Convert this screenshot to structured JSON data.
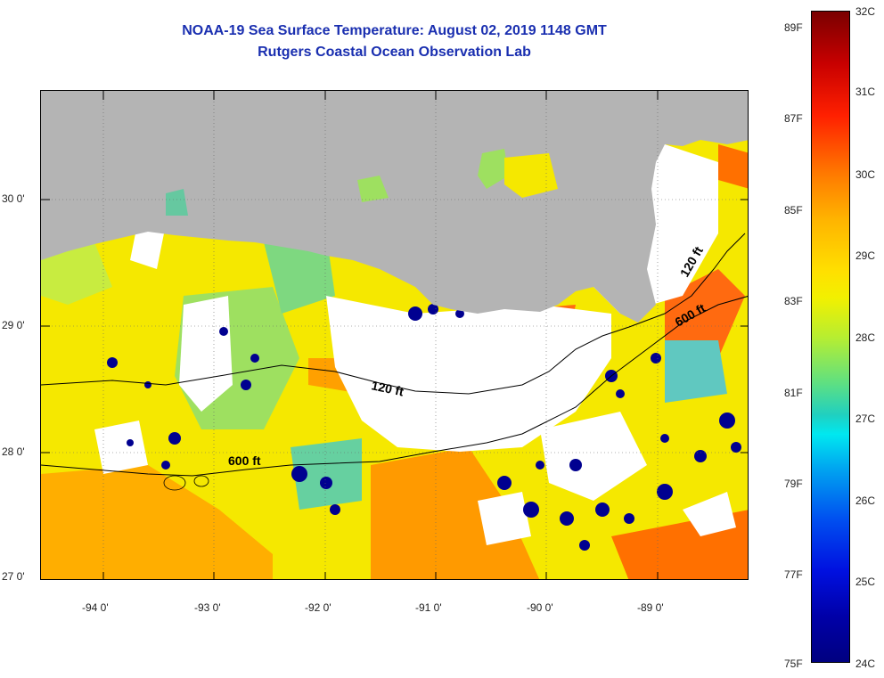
{
  "title": {
    "line1": "NOAA-19 Sea Surface Temperature:  August 02, 2019 1148 GMT",
    "line2": "Rutgers Coastal Ocean Observation Lab"
  },
  "map": {
    "lat_labels": [
      "30 0'",
      "29 0'",
      "28 0'",
      "27 0'"
    ],
    "lon_labels": [
      "-94 0'",
      "-93 0'",
      "-92 0'",
      "-91 0'",
      "-90 0'",
      "-89 0'"
    ],
    "isobath_labels": {
      "a": "120 ft",
      "b": "120 ft",
      "c": "600 ft",
      "d": "600 ft"
    },
    "colors": {
      "land": "#b4b4b4",
      "cloud": "#ffffff",
      "sst_warm": "#f7d500",
      "sst_hot": "#ff7a00",
      "sst_cool": "#9ee060",
      "sst_cold": "#000090"
    }
  },
  "colorbar": {
    "fahrenheit": [
      "89F",
      "87F",
      "85F",
      "83F",
      "81F",
      "79F",
      "77F",
      "75F"
    ],
    "celsius": [
      "32C",
      "31C",
      "30C",
      "29C",
      "28C",
      "27C",
      "26C",
      "25C",
      "24C"
    ]
  }
}
